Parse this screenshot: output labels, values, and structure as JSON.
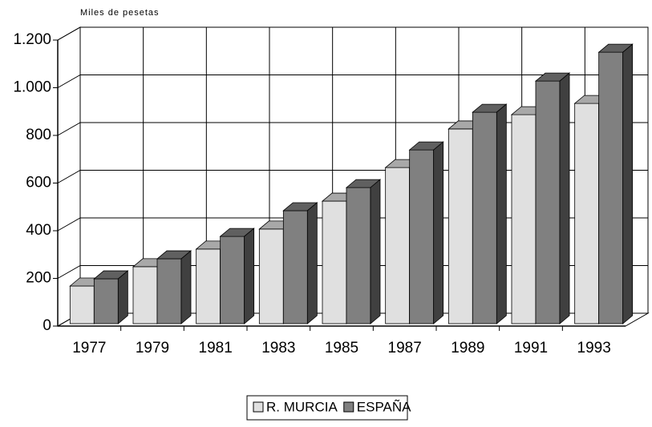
{
  "chart_data": {
    "type": "bar3d",
    "subtitle": "Miles de pesetas",
    "categories": [
      "1977",
      "1979",
      "1981",
      "1983",
      "1985",
      "1987",
      "1989",
      "1991",
      "1993"
    ],
    "series": [
      {
        "name": "R. MURCIA",
        "color": "#e0e0e0",
        "values": [
          158,
          239,
          313,
          397,
          514,
          655,
          817,
          877,
          924
        ]
      },
      {
        "name": "ESPAÑA",
        "color": "#808080",
        "values": [
          188,
          272,
          366,
          474,
          571,
          729,
          887,
          1018,
          1139
        ]
      }
    ],
    "ylim": [
      0,
      1200
    ],
    "yticks": [
      0,
      200,
      400,
      600,
      800,
      {
        "value": 1000,
        "label": "1.000"
      },
      {
        "value": 1200,
        "label": "1.200"
      }
    ],
    "grid": true,
    "legend": "bottom"
  }
}
